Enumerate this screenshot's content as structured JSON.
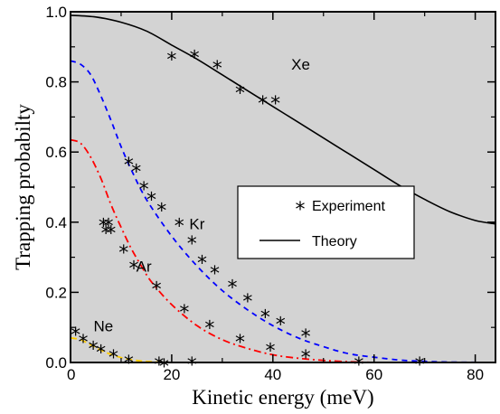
{
  "chart_data": {
    "type": "line",
    "xlabel": "Kinetic energy (meV)",
    "ylabel": "Trapping probabilty",
    "xlim": [
      0,
      84
    ],
    "ylim": [
      0,
      1.0
    ],
    "x_ticks": [
      0,
      20,
      40,
      60,
      80
    ],
    "y_ticks": [
      0.0,
      0.2,
      0.4,
      0.6,
      0.8,
      1.0
    ],
    "x_tick_labels": [
      "0",
      "20",
      "40",
      "60",
      "80"
    ],
    "y_tick_labels": [
      "0.0",
      "0.2",
      "0.4",
      "0.6",
      "0.8",
      "1.0"
    ],
    "background": "#d3d3d3",
    "grid": false,
    "legend": {
      "placement": "center-right",
      "entries": [
        {
          "label": "Experiment",
          "marker": "*"
        },
        {
          "label": "Theory",
          "line": "solid"
        }
      ]
    },
    "series": [
      {
        "name": "Xe",
        "color": "#000000",
        "dash": "solid",
        "label_at": [
          45.5,
          0.85
        ],
        "theory": [
          [
            0,
            0.99
          ],
          [
            5,
            0.985
          ],
          [
            10,
            0.97
          ],
          [
            15,
            0.945
          ],
          [
            20,
            0.905
          ],
          [
            25,
            0.865
          ],
          [
            30,
            0.82
          ],
          [
            35,
            0.775
          ],
          [
            40,
            0.73
          ],
          [
            45,
            0.685
          ],
          [
            50,
            0.64
          ],
          [
            55,
            0.595
          ],
          [
            60,
            0.55
          ],
          [
            65,
            0.505
          ],
          [
            70,
            0.465
          ],
          [
            75,
            0.43
          ],
          [
            80,
            0.405
          ],
          [
            84,
            0.395
          ]
        ],
        "experiment": [
          [
            20,
            0.87
          ],
          [
            24.5,
            0.875
          ],
          [
            29,
            0.845
          ],
          [
            33.5,
            0.775
          ],
          [
            38,
            0.745
          ],
          [
            40.5,
            0.745
          ]
        ]
      },
      {
        "name": "Kr",
        "color": "#0000ff",
        "dash": "6,5",
        "label_at": [
          25,
          0.395
        ],
        "theory": [
          [
            0,
            0.86
          ],
          [
            2,
            0.85
          ],
          [
            4,
            0.82
          ],
          [
            6,
            0.76
          ],
          [
            8,
            0.69
          ],
          [
            10,
            0.615
          ],
          [
            12,
            0.55
          ],
          [
            15,
            0.465
          ],
          [
            20,
            0.36
          ],
          [
            25,
            0.275
          ],
          [
            30,
            0.205
          ],
          [
            35,
            0.15
          ],
          [
            40,
            0.105
          ],
          [
            45,
            0.07
          ],
          [
            50,
            0.045
          ],
          [
            55,
            0.025
          ],
          [
            60,
            0.015
          ],
          [
            65,
            0.007
          ],
          [
            70,
            0.003
          ],
          [
            75,
            0.001
          ],
          [
            84,
            0
          ]
        ],
        "experiment": [
          [
            11.5,
            0.57
          ],
          [
            13,
            0.55
          ],
          [
            14.5,
            0.5
          ],
          [
            16,
            0.47
          ],
          [
            18,
            0.44
          ],
          [
            21.5,
            0.395
          ],
          [
            24,
            0.345
          ],
          [
            26,
            0.29
          ],
          [
            28.5,
            0.26
          ],
          [
            32,
            0.22
          ],
          [
            35,
            0.18
          ],
          [
            38.5,
            0.135
          ],
          [
            41.5,
            0.115
          ],
          [
            46.5,
            0.08
          ]
        ]
      },
      {
        "name": "Ar",
        "color": "#ff0000",
        "dash": "8,4,2,4",
        "label_at": [
          14.5,
          0.275
        ],
        "theory": [
          [
            0,
            0.635
          ],
          [
            2,
            0.625
          ],
          [
            4,
            0.585
          ],
          [
            6,
            0.525
          ],
          [
            8,
            0.45
          ],
          [
            10,
            0.385
          ],
          [
            12,
            0.325
          ],
          [
            14,
            0.275
          ],
          [
            16,
            0.23
          ],
          [
            20,
            0.165
          ],
          [
            25,
            0.105
          ],
          [
            30,
            0.065
          ],
          [
            35,
            0.04
          ],
          [
            40,
            0.022
          ],
          [
            45,
            0.012
          ],
          [
            50,
            0.006
          ],
          [
            55,
            0.002
          ],
          [
            60,
            0
          ]
        ],
        "experiment": [
          [
            6.5,
            0.395
          ],
          [
            7,
            0.375
          ],
          [
            7.5,
            0.395
          ],
          [
            8,
            0.375
          ],
          [
            10.5,
            0.32
          ],
          [
            12.5,
            0.275
          ],
          [
            17,
            0.215
          ],
          [
            22.5,
            0.15
          ],
          [
            27.5,
            0.105
          ],
          [
            33.5,
            0.065
          ],
          [
            39.5,
            0.04
          ],
          [
            46.5,
            0.02
          ],
          [
            57,
            0.0
          ],
          [
            69,
            0.0
          ]
        ]
      },
      {
        "name": "Ne",
        "color": "#ffcc00",
        "dash": "7,4",
        "label_at": [
          6.5,
          0.105
        ],
        "theory": [
          [
            0,
            0.07
          ],
          [
            2,
            0.065
          ],
          [
            4,
            0.05
          ],
          [
            6,
            0.035
          ],
          [
            8,
            0.023
          ],
          [
            10,
            0.014
          ],
          [
            12,
            0.008
          ],
          [
            14,
            0.004
          ],
          [
            16,
            0.002
          ],
          [
            18,
            0.001
          ],
          [
            20,
            0
          ]
        ],
        "experiment": [
          [
            1,
            0.085
          ],
          [
            2.5,
            0.065
          ],
          [
            4.5,
            0.045
          ],
          [
            6,
            0.035
          ],
          [
            8.5,
            0.02
          ],
          [
            11.5,
            0.005
          ],
          [
            17.5,
            0.0
          ],
          [
            18.5,
            -0.005
          ],
          [
            24,
            0.0
          ]
        ]
      }
    ]
  }
}
